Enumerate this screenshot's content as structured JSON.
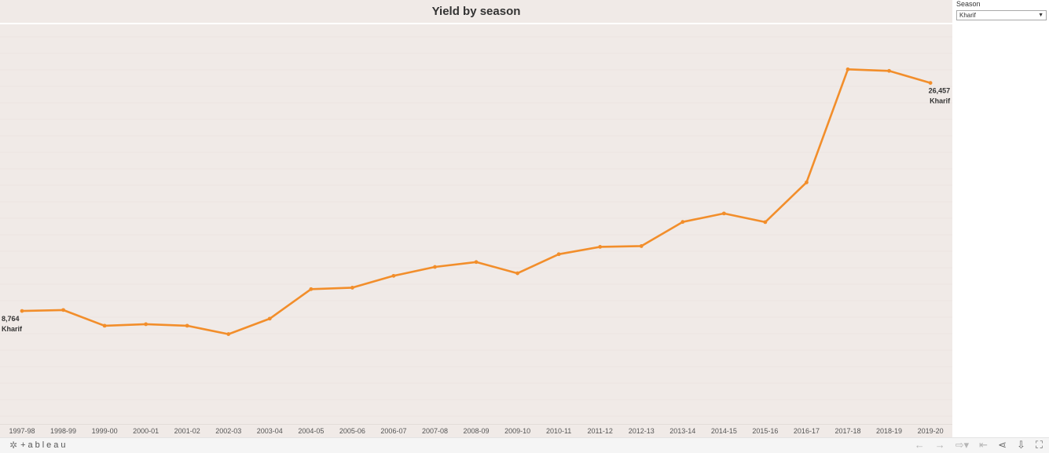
{
  "title": "Yield by season",
  "filter": {
    "label": "Season",
    "value": "Kharif"
  },
  "chart_data": {
    "type": "line",
    "title": "Yield by season",
    "xlabel": "",
    "ylabel": "",
    "ylim": [
      0,
      31000
    ],
    "grid": false,
    "categories": [
      "1997-98",
      "1998-99",
      "1999-00",
      "2000-01",
      "2001-02",
      "2002-03",
      "2003-04",
      "2004-05",
      "2005-06",
      "2006-07",
      "2007-08",
      "2008-09",
      "2009-10",
      "2010-11",
      "2011-12",
      "2012-13",
      "2013-14",
      "2014-15",
      "2015-16",
      "2016-17",
      "2017-18",
      "2018-19",
      "2019-20"
    ],
    "series": [
      {
        "name": "Kharif",
        "color": "#f28e2b",
        "values": [
          8764,
          8840,
          7620,
          7740,
          7620,
          6970,
          8170,
          10460,
          10570,
          11490,
          12180,
          12560,
          11690,
          13170,
          13740,
          13800,
          15670,
          16330,
          15660,
          18740,
          27510,
          27390,
          26457
        ]
      }
    ],
    "annotations": [
      {
        "index": 0,
        "value": "8,764",
        "label": "Kharif"
      },
      {
        "index": 22,
        "value": "26,457",
        "label": "Kharif"
      }
    ]
  },
  "footer": {
    "logo_mark": "✲",
    "logo_text": "+ableau",
    "icons": [
      "undo-icon",
      "redo-icon",
      "revert-icon",
      "reset-icon",
      "share-icon",
      "download-icon",
      "fullscreen-icon"
    ]
  }
}
